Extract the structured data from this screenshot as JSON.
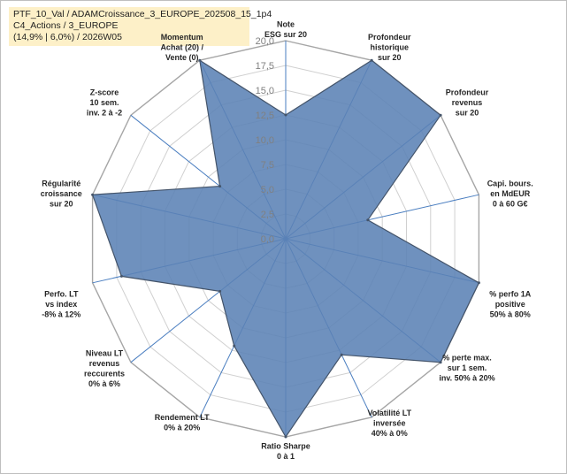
{
  "info": {
    "line1": "PTF_10_Val / ADAMCroissance_3_EUROPE_202508_15_1p4",
    "line2": "C4_Actions / 3_EUROPE",
    "line3": "(14,9% | 6,0%) / 2026W05"
  },
  "chart_data": {
    "type": "radar",
    "rmin": 0,
    "rmax": 20,
    "ticks": [
      "0,0",
      "2,5",
      "5,0",
      "7,5",
      "10,0",
      "12,5",
      "15,0",
      "17,5",
      "20,0"
    ],
    "grid": true,
    "fill_color": "#5b82b5",
    "line_color": "#44546a",
    "axes": [
      {
        "label": [
          "Note",
          "ESG sur 20"
        ],
        "value": 12.5
      },
      {
        "label": [
          "Profondeur",
          "historique",
          "sur 20"
        ],
        "value": 20
      },
      {
        "label": [
          "Profondeur",
          "revenus",
          "sur 20"
        ],
        "value": 20
      },
      {
        "label": [
          "Capi. bours.",
          "en MdEUR",
          "0 à 60 G€"
        ],
        "value": 8.5
      },
      {
        "label": [
          "% perfo 1A",
          "positive",
          "50% à 80%"
        ],
        "value": 20
      },
      {
        "label": [
          "% perte max.",
          "sur 1 sem.",
          "inv. 50% à 20%"
        ],
        "value": 20
      },
      {
        "label": [
          "Volatilité LT",
          "inversée",
          "40% à 0%"
        ],
        "value": 13
      },
      {
        "label": [
          "Ratio Sharpe",
          "0 à 1"
        ],
        "value": 20
      },
      {
        "label": [
          "Rendement LT",
          "0% à 20%"
        ],
        "value": 12
      },
      {
        "label": [
          "Niveau LT",
          "revenus",
          "reccurents",
          "0% à 6%"
        ],
        "value": 8.5
      },
      {
        "label": [
          "Perfo. LT",
          "vs index",
          "-8% à 12%"
        ],
        "value": 17
      },
      {
        "label": [
          "Régularité",
          "croissance",
          "sur 20"
        ],
        "value": 20
      },
      {
        "label": [
          "Z-score",
          "10 sem.",
          "inv. 2 à -2"
        ],
        "value": 8.5
      },
      {
        "label": [
          "Momentum",
          "Achat (20) /",
          "Vente (0)"
        ],
        "value": 20
      }
    ]
  }
}
